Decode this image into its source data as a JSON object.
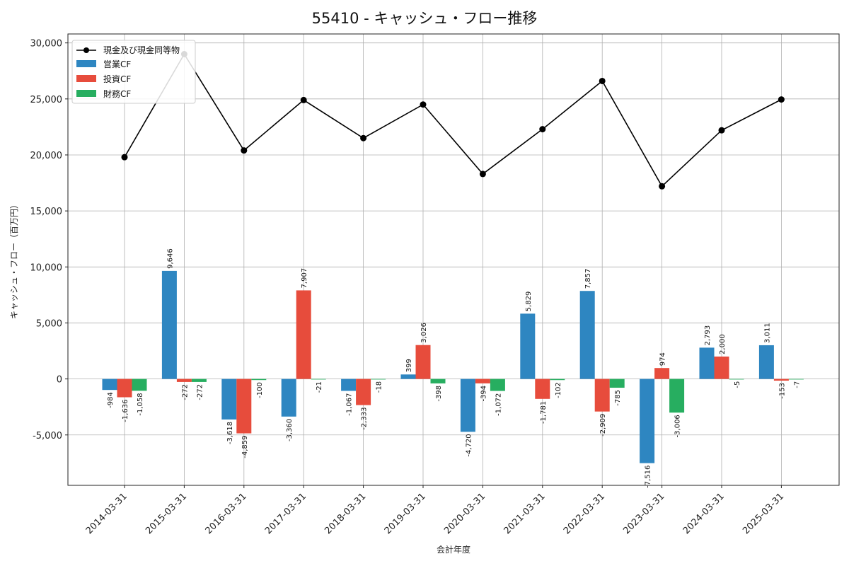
{
  "chart_data": {
    "type": "bar",
    "title": "55410 - キャッシュ・フロー推移",
    "xlabel": "会計年度",
    "ylabel": "キャッシュ・フロー（百万円）",
    "ylim": [
      -9500,
      30800
    ],
    "yticks": [
      -5000,
      0,
      5000,
      10000,
      15000,
      20000,
      25000,
      30000
    ],
    "ytick_labels": [
      "-5,000",
      "0",
      "5,000",
      "10,000",
      "15,000",
      "20,000",
      "25,000",
      "30,000"
    ],
    "grid": true,
    "legend_position": "top-left",
    "categories": [
      "2014-03-31",
      "2015-03-31",
      "2016-03-31",
      "2017-03-31",
      "2018-03-31",
      "2019-03-31",
      "2020-03-31",
      "2021-03-31",
      "2022-03-31",
      "2023-03-31",
      "2024-03-31",
      "2025-03-31"
    ],
    "series": [
      {
        "name": "営業CF",
        "type": "bar",
        "color": "#2e86c1",
        "values": [
          -984,
          9646,
          -3618,
          -3360,
          -1067,
          399,
          -4720,
          5829,
          7857,
          -7516,
          2793,
          3011
        ],
        "labels": [
          "-984",
          "9,646",
          "-3,618",
          "-3,360",
          "-1,067",
          "399",
          "-4,720",
          "5,829",
          "7,857",
          "-7,516",
          "2,793",
          "3,011"
        ]
      },
      {
        "name": "投資CF",
        "type": "bar",
        "color": "#e74c3c",
        "values": [
          -1636,
          -272,
          -4859,
          7907,
          -2333,
          3026,
          -394,
          -1781,
          -2909,
          974,
          2000,
          -153
        ],
        "labels": [
          "-1,636",
          "-272",
          "-4,859",
          "7,907",
          "-2,333",
          "3,026",
          "-394",
          "-1,781",
          "-2,909",
          "974",
          "2,000",
          "-153"
        ]
      },
      {
        "name": "財務CF",
        "type": "bar",
        "color": "#27ae60",
        "values": [
          -1058,
          -272,
          -100,
          -21,
          -18,
          -398,
          -1072,
          -102,
          -785,
          -3006,
          -5,
          -7
        ],
        "labels": [
          "-1,058",
          "-272",
          "-100",
          "-21",
          "-18",
          "-398",
          "-1,072",
          "-102",
          "-785",
          "-3,006",
          "-5",
          "-7"
        ]
      },
      {
        "name": "現金及び現金同等物",
        "type": "line",
        "color": "#000000",
        "values": [
          19800,
          29000,
          20400,
          24900,
          21500,
          24500,
          18300,
          22300,
          26600,
          17200,
          22200,
          24950
        ]
      }
    ]
  }
}
